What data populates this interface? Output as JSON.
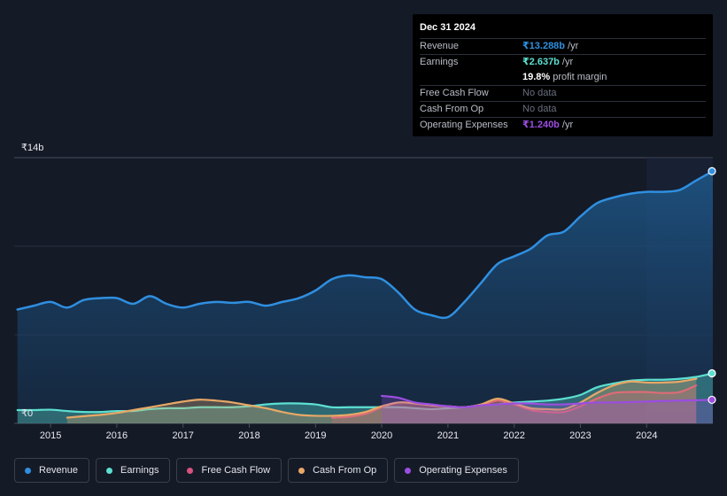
{
  "tooltip": {
    "date": "Dec 31 2024",
    "revenue_label": "Revenue",
    "revenue_value": "₹13.288b",
    "revenue_unit": "/yr",
    "earnings_label": "Earnings",
    "earnings_value": "₹2.637b",
    "earnings_unit": "/yr",
    "margin_value": "19.8%",
    "margin_label": "profit margin",
    "fcf_label": "Free Cash Flow",
    "fcf_value": "No data",
    "cfo_label": "Cash From Op",
    "cfo_value": "No data",
    "opex_label": "Operating Expenses",
    "opex_value": "₹1.240b",
    "opex_unit": "/yr"
  },
  "legend": [
    {
      "label": "Revenue",
      "color": "#2f8fe0"
    },
    {
      "label": "Earnings",
      "color": "#5ce0d0"
    },
    {
      "label": "Free Cash Flow",
      "color": "#d9527f"
    },
    {
      "label": "Cash From Op",
      "color": "#e8a866"
    },
    {
      "label": "Operating Expenses",
      "color": "#9b4de0"
    }
  ],
  "chart_data": {
    "type": "area",
    "title": "",
    "xlabel": "",
    "ylabel": "",
    "y_top_label": "₹14b",
    "y_bottom_label": "₹0",
    "ylim": [
      0,
      14
    ],
    "xlim": [
      2014.45,
      2025.0
    ],
    "x_ticks": [
      2015,
      2016,
      2017,
      2018,
      2019,
      2020,
      2021,
      2022,
      2023,
      2024
    ],
    "x_tick_labels": [
      "2015",
      "2016",
      "2017",
      "2018",
      "2019",
      "2020",
      "2021",
      "2022",
      "2023",
      "2024"
    ],
    "forecast_shade_start": 2024.0,
    "series": [
      {
        "name": "Revenue",
        "color": "#2f8fe0",
        "fill": true,
        "x": [
          2014.5,
          2014.75,
          2015.0,
          2015.25,
          2015.5,
          2015.75,
          2016.0,
          2016.25,
          2016.5,
          2016.75,
          2017.0,
          2017.25,
          2017.5,
          2017.75,
          2018.0,
          2018.25,
          2018.5,
          2018.75,
          2019.0,
          2019.25,
          2019.5,
          2019.75,
          2020.0,
          2020.25,
          2020.5,
          2020.75,
          2021.0,
          2021.25,
          2021.5,
          2021.75,
          2022.0,
          2022.25,
          2022.5,
          2022.75,
          2023.0,
          2023.25,
          2023.5,
          2023.75,
          2024.0,
          2024.25,
          2024.5,
          2024.75,
          2025.0
        ],
        "values": [
          6.0,
          6.2,
          6.4,
          6.1,
          6.5,
          6.6,
          6.6,
          6.3,
          6.7,
          6.3,
          6.1,
          6.3,
          6.4,
          6.35,
          6.4,
          6.2,
          6.4,
          6.6,
          7.0,
          7.6,
          7.8,
          7.7,
          7.6,
          6.9,
          6.0,
          5.7,
          5.6,
          6.4,
          7.4,
          8.4,
          8.8,
          9.2,
          9.9,
          10.1,
          10.9,
          11.6,
          11.9,
          12.1,
          12.2,
          12.2,
          12.3,
          12.8,
          13.288
        ]
      },
      {
        "name": "Earnings",
        "color": "#5ce0d0",
        "fill": true,
        "x": [
          2014.5,
          2014.75,
          2015.0,
          2015.25,
          2015.5,
          2015.75,
          2016.0,
          2016.25,
          2016.5,
          2016.75,
          2017.0,
          2017.25,
          2017.5,
          2017.75,
          2018.0,
          2018.25,
          2018.5,
          2018.75,
          2019.0,
          2019.25,
          2019.5,
          2019.75,
          2020.0,
          2020.25,
          2020.5,
          2020.75,
          2021.0,
          2021.25,
          2021.5,
          2021.75,
          2022.0,
          2022.25,
          2022.5,
          2022.75,
          2023.0,
          2023.25,
          2023.5,
          2023.75,
          2024.0,
          2024.25,
          2024.5,
          2024.75,
          2025.0
        ],
        "values": [
          0.7,
          0.7,
          0.72,
          0.65,
          0.6,
          0.6,
          0.65,
          0.65,
          0.75,
          0.8,
          0.8,
          0.85,
          0.85,
          0.85,
          0.9,
          1.0,
          1.05,
          1.05,
          1.0,
          0.85,
          0.85,
          0.85,
          0.85,
          0.85,
          0.8,
          0.75,
          0.8,
          0.85,
          0.95,
          1.0,
          1.1,
          1.15,
          1.2,
          1.3,
          1.5,
          1.9,
          2.1,
          2.25,
          2.3,
          2.3,
          2.35,
          2.45,
          2.637
        ]
      },
      {
        "name": "Free Cash Flow",
        "color": "#d9527f",
        "fill": true,
        "x": [
          2019.25,
          2019.5,
          2019.75,
          2020.0,
          2020.25,
          2020.5,
          2020.75,
          2021.0,
          2021.25,
          2021.5,
          2021.75,
          2022.0,
          2022.25,
          2022.5,
          2022.75,
          2023.0,
          2023.25,
          2023.5,
          2023.75,
          2024.0,
          2024.25,
          2024.5,
          2024.75
        ],
        "values": [
          0.3,
          0.35,
          0.5,
          0.85,
          1.1,
          1.05,
          0.95,
          0.9,
          0.85,
          0.95,
          1.2,
          1.0,
          0.7,
          0.6,
          0.6,
          0.9,
          1.3,
          1.6,
          1.65,
          1.65,
          1.6,
          1.65,
          2.0
        ]
      },
      {
        "name": "Cash From Op",
        "color": "#e8a866",
        "fill": true,
        "x": [
          2015.25,
          2015.5,
          2015.75,
          2016.0,
          2016.25,
          2016.5,
          2016.75,
          2017.0,
          2017.25,
          2017.5,
          2017.75,
          2018.0,
          2018.25,
          2018.5,
          2018.75,
          2019.0,
          2019.25,
          2019.5,
          2019.75,
          2020.0,
          2020.25,
          2020.5,
          2020.75,
          2021.0,
          2021.25,
          2021.5,
          2021.75,
          2022.0,
          2022.25,
          2022.5,
          2022.75,
          2023.0,
          2023.25,
          2023.5,
          2023.75,
          2024.0,
          2024.25,
          2024.5,
          2024.75
        ],
        "values": [
          0.3,
          0.38,
          0.45,
          0.55,
          0.7,
          0.85,
          1.0,
          1.15,
          1.25,
          1.2,
          1.1,
          0.95,
          0.8,
          0.6,
          0.45,
          0.4,
          0.4,
          0.45,
          0.6,
          0.9,
          1.1,
          1.05,
          0.95,
          0.9,
          0.85,
          1.0,
          1.3,
          1.05,
          0.8,
          0.75,
          0.75,
          1.1,
          1.6,
          2.0,
          2.2,
          2.15,
          2.15,
          2.2,
          2.35
        ]
      },
      {
        "name": "Operating Expenses",
        "color": "#9b4de0",
        "fill": true,
        "x": [
          2020.0,
          2020.25,
          2020.5,
          2020.75,
          2021.0,
          2021.25,
          2021.5,
          2021.75,
          2022.0,
          2022.25,
          2022.5,
          2022.75,
          2023.0,
          2023.25,
          2023.5,
          2023.75,
          2024.0,
          2024.25,
          2024.5,
          2024.75,
          2025.0
        ],
        "values": [
          1.45,
          1.35,
          1.1,
          1.0,
          0.9,
          0.85,
          0.95,
          1.0,
          1.05,
          1.05,
          1.0,
          1.0,
          1.05,
          1.1,
          1.1,
          1.12,
          1.15,
          1.18,
          1.2,
          1.22,
          1.24
        ]
      }
    ],
    "end_markers": [
      {
        "series": "Revenue",
        "x": 2025.0,
        "value": 13.288
      },
      {
        "series": "Earnings",
        "x": 2025.0,
        "value": 2.637
      },
      {
        "series": "Operating Expenses",
        "x": 2025.0,
        "value": 1.24
      }
    ]
  }
}
